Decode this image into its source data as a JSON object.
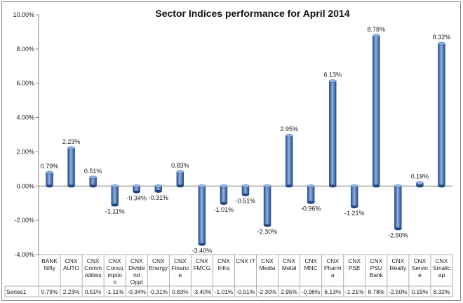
{
  "chart_data": {
    "type": "bar",
    "title": "Sector Indices performance  for April 2014",
    "categories": [
      [
        "BANK",
        "Nifty"
      ],
      [
        "CNX",
        "AUTO"
      ],
      [
        "CNX",
        "Comm",
        "odities"
      ],
      [
        "CNX",
        "Consu",
        "mptio",
        "n"
      ],
      [
        "CNX",
        "Divide",
        "nd",
        "Oppt"
      ],
      [
        "CNX",
        "Energy"
      ],
      [
        "CNX",
        "Financ",
        "e"
      ],
      [
        "CNX",
        "FMCG"
      ],
      [
        "CNX",
        "Infra"
      ],
      [
        "CNX IT"
      ],
      [
        "CNX",
        "Media"
      ],
      [
        "CNX",
        "Metal"
      ],
      [
        "CNX",
        "MNC"
      ],
      [
        "CNX",
        "Pharm",
        "a"
      ],
      [
        "CNX",
        "PSE"
      ],
      [
        "CNX",
        "PSU",
        "Bank"
      ],
      [
        "CNX",
        "Realty"
      ],
      [
        "CNX",
        "Servic",
        "e"
      ],
      [
        "CNX",
        "Smallc",
        "ap"
      ]
    ],
    "series": [
      {
        "name": "Series1",
        "values": [
          0.79,
          2.23,
          0.51,
          -1.11,
          -0.34,
          -0.31,
          0.83,
          -3.4,
          -1.01,
          -0.51,
          -2.3,
          2.95,
          -0.96,
          6.13,
          -1.21,
          8.78,
          -2.5,
          0.19,
          8.32
        ]
      }
    ],
    "data_labels": [
      "0.79%",
      "2.23%",
      "0.51%",
      "-1.11%",
      "-0.34%",
      "-0.31%",
      "0.83%",
      "-3.40%",
      "-1.01%",
      "-0.51%",
      "-2.30%",
      "2.95%",
      "-0.96%",
      "6.13%",
      "-1.21%",
      "8.78%",
      "-2.50%",
      "0.19%",
      "8.32%"
    ],
    "y_ticks": [
      "-4.00%",
      "-2.00%",
      "0.00%",
      "2.00%",
      "4.00%",
      "6.00%",
      "8.00%",
      "10.00%"
    ],
    "ylim": [
      -4,
      10
    ],
    "y_step": 2,
    "xlabel": "",
    "ylabel": "",
    "grid": false,
    "legend": "data-table",
    "bar_color": "#3c6fc0",
    "bar_color_dark": "#22467f",
    "bar_color_light": "#8fb2e8"
  }
}
